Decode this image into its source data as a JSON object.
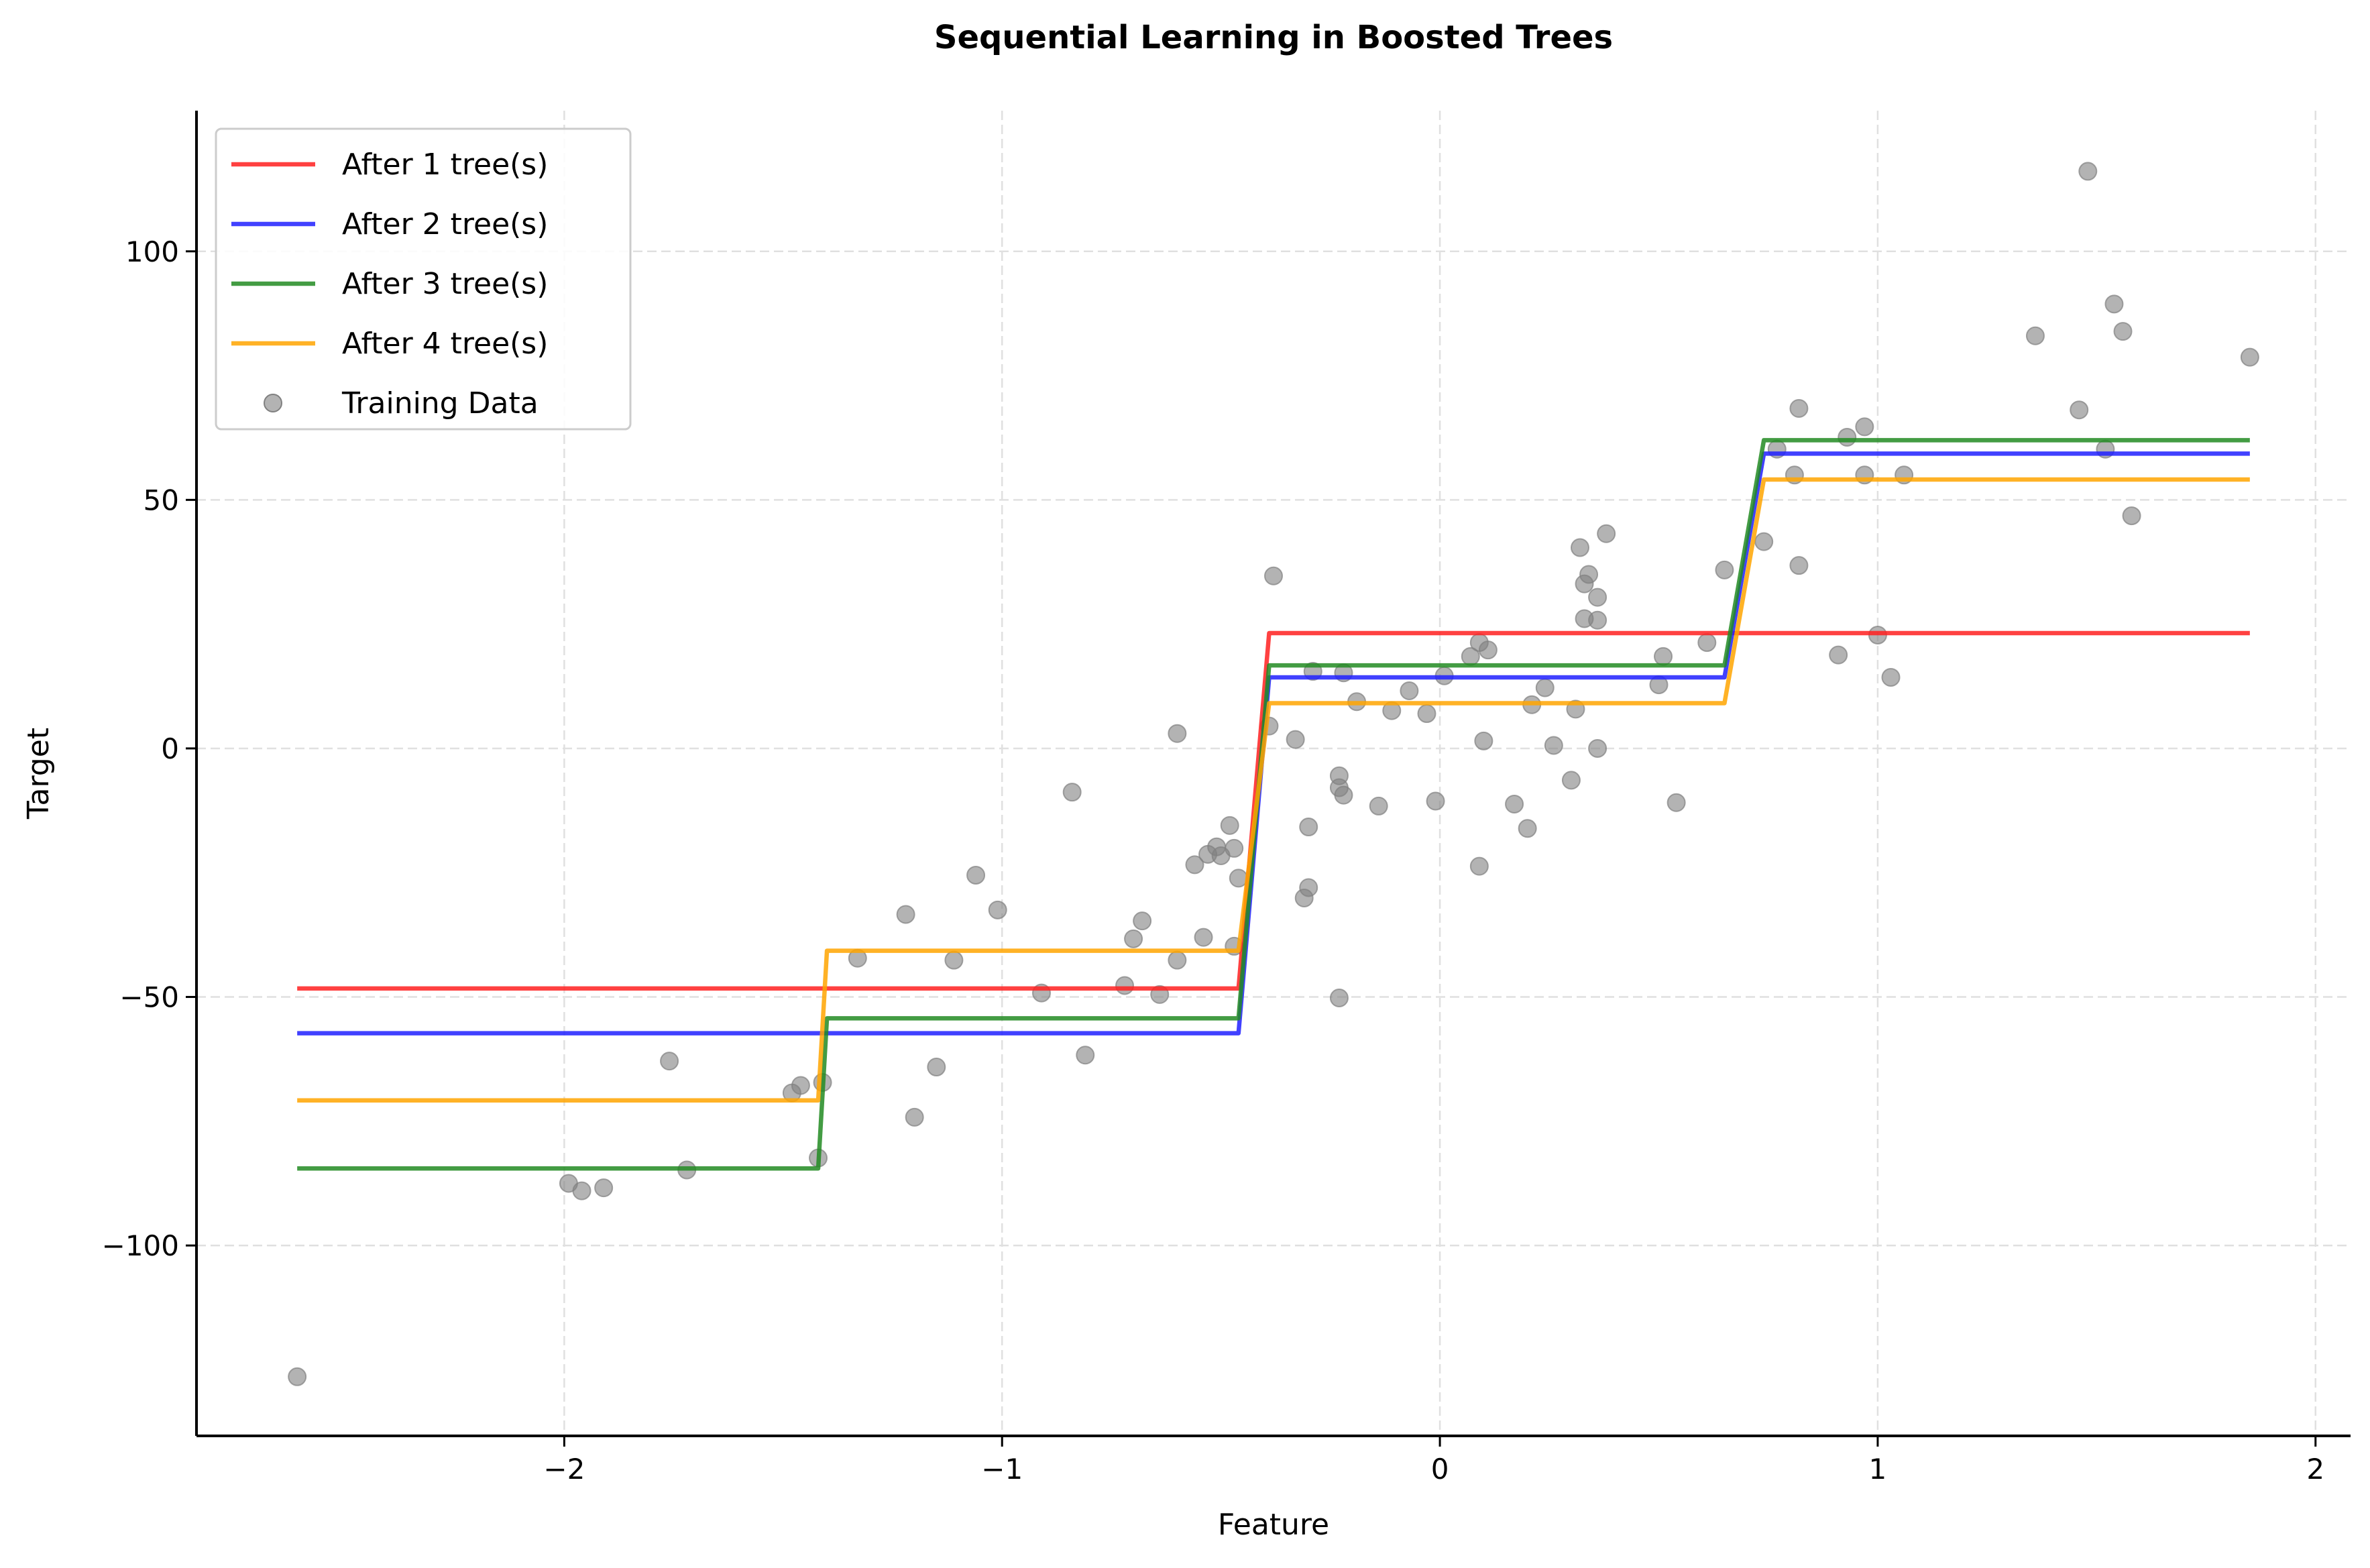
{
  "chart_data": {
    "type": "line",
    "title": "Sequential Learning in Boosted Trees",
    "xlabel": "Feature",
    "ylabel": "Target",
    "xlim": [
      -2.84,
      2.08
    ],
    "ylim": [
      -138.3,
      128.3
    ],
    "xticks": [
      -2,
      -1,
      0,
      1,
      2
    ],
    "xtick_labels": [
      "−2",
      "−1",
      "0",
      "1",
      "2"
    ],
    "yticks": [
      -100,
      -50,
      0,
      50,
      100
    ],
    "ytick_labels": [
      "−100",
      "−50",
      "0",
      "50",
      "100"
    ],
    "grid": true,
    "legend": "top-left",
    "series": [
      {
        "name": "After 1 tree(s)",
        "color": "#ff2020",
        "x": [
          -2.61,
          -0.46,
          -0.39,
          1.85
        ],
        "y": [
          -48.3,
          -48.3,
          23.2,
          23.2
        ]
      },
      {
        "name": "After 2 tree(s)",
        "color": "#2020ff",
        "x": [
          -2.61,
          -0.46,
          -0.39,
          0.65,
          0.74,
          1.85
        ],
        "y": [
          -57.3,
          -57.3,
          14.3,
          14.3,
          59.3,
          59.3
        ]
      },
      {
        "name": "After 3 tree(s)",
        "color": "#228b22",
        "x": [
          -2.61,
          -1.42,
          -1.4,
          -0.46,
          -0.39,
          0.65,
          0.74,
          1.85
        ],
        "y": [
          -84.5,
          -84.5,
          -54.3,
          -54.3,
          16.7,
          16.7,
          62.0,
          62.0
        ]
      },
      {
        "name": "After 4 tree(s)",
        "color": "#ffa500",
        "x": [
          -2.61,
          -1.42,
          -1.4,
          -0.46,
          -0.39,
          0.65,
          0.74,
          1.85
        ],
        "y": [
          -70.8,
          -70.8,
          -40.7,
          -40.7,
          9.1,
          9.1,
          54.1,
          54.1
        ]
      }
    ],
    "scatter": {
      "name": "Training Data",
      "color": "#808080",
      "points": [
        [
          -2.61,
          -126.4
        ],
        [
          -1.99,
          -87.5
        ],
        [
          -1.96,
          -89.0
        ],
        [
          -1.91,
          -88.4
        ],
        [
          -1.76,
          -62.9
        ],
        [
          -1.72,
          -84.8
        ],
        [
          -1.48,
          -69.3
        ],
        [
          -1.46,
          -67.8
        ],
        [
          -1.41,
          -67.2
        ],
        [
          -1.42,
          -82.4
        ],
        [
          -1.33,
          -42.2
        ],
        [
          -1.22,
          -33.4
        ],
        [
          -1.2,
          -74.2
        ],
        [
          -1.15,
          -64.1
        ],
        [
          -1.11,
          -42.6
        ],
        [
          -1.06,
          -25.5
        ],
        [
          -1.01,
          -32.5
        ],
        [
          -0.91,
          -49.2
        ],
        [
          -0.84,
          -8.8
        ],
        [
          -0.81,
          -61.7
        ],
        [
          -0.72,
          -47.7
        ],
        [
          -0.7,
          -38.3
        ],
        [
          -0.68,
          -34.7
        ],
        [
          -0.64,
          -49.5
        ],
        [
          -0.6,
          3.0
        ],
        [
          -0.6,
          -42.6
        ],
        [
          -0.56,
          -23.4
        ],
        [
          -0.54,
          -38.0
        ],
        [
          -0.53,
          -21.3
        ],
        [
          -0.51,
          -19.8
        ],
        [
          -0.5,
          -21.6
        ],
        [
          -0.48,
          -15.5
        ],
        [
          -0.47,
          -20.1
        ],
        [
          -0.46,
          -26.1
        ],
        [
          -0.47,
          -39.8
        ],
        [
          -0.39,
          4.5
        ],
        [
          -0.38,
          34.7
        ],
        [
          -0.33,
          1.8
        ],
        [
          -0.31,
          -30.1
        ],
        [
          -0.3,
          -15.8
        ],
        [
          -0.3,
          -28.0
        ],
        [
          -0.29,
          15.5
        ],
        [
          -0.23,
          -50.2
        ],
        [
          -0.23,
          -5.5
        ],
        [
          -0.23,
          -7.9
        ],
        [
          -0.22,
          -9.4
        ],
        [
          -0.22,
          15.2
        ],
        [
          -0.19,
          9.4
        ],
        [
          -0.14,
          -11.6
        ],
        [
          -0.11,
          7.6
        ],
        [
          -0.07,
          11.6
        ],
        [
          -0.03,
          7.0
        ],
        [
          -0.01,
          -10.6
        ],
        [
          0.01,
          14.6
        ],
        [
          0.07,
          18.5
        ],
        [
          0.09,
          -23.7
        ],
        [
          0.09,
          21.3
        ],
        [
          0.1,
          1.5
        ],
        [
          0.11,
          19.8
        ],
        [
          0.17,
          -11.2
        ],
        [
          0.2,
          -16.1
        ],
        [
          0.21,
          8.8
        ],
        [
          0.24,
          12.2
        ],
        [
          0.26,
          0.6
        ],
        [
          0.3,
          -6.4
        ],
        [
          0.31,
          7.9
        ],
        [
          0.32,
          40.4
        ],
        [
          0.33,
          33.1
        ],
        [
          0.33,
          26.1
        ],
        [
          0.34,
          35.0
        ],
        [
          0.36,
          25.8
        ],
        [
          0.36,
          30.4
        ],
        [
          0.36,
          0.0
        ],
        [
          0.38,
          43.2
        ],
        [
          0.5,
          12.8
        ],
        [
          0.51,
          18.5
        ],
        [
          0.54,
          -10.9
        ],
        [
          0.61,
          21.3
        ],
        [
          0.65,
          35.9
        ],
        [
          0.74,
          41.6
        ],
        [
          0.77,
          60.2
        ],
        [
          0.81,
          55.0
        ],
        [
          0.82,
          36.8
        ],
        [
          0.82,
          68.4
        ],
        [
          0.91,
          18.8
        ],
        [
          0.93,
          62.6
        ],
        [
          0.97,
          55.0
        ],
        [
          0.97,
          64.7
        ],
        [
          1.0,
          22.8
        ],
        [
          1.03,
          14.3
        ],
        [
          1.06,
          55.0
        ],
        [
          1.36,
          83.0
        ],
        [
          1.46,
          68.1
        ],
        [
          1.48,
          116.1
        ],
        [
          1.52,
          60.2
        ],
        [
          1.54,
          89.4
        ],
        [
          1.56,
          83.9
        ],
        [
          1.58,
          46.8
        ],
        [
          1.85,
          78.7
        ]
      ]
    }
  }
}
